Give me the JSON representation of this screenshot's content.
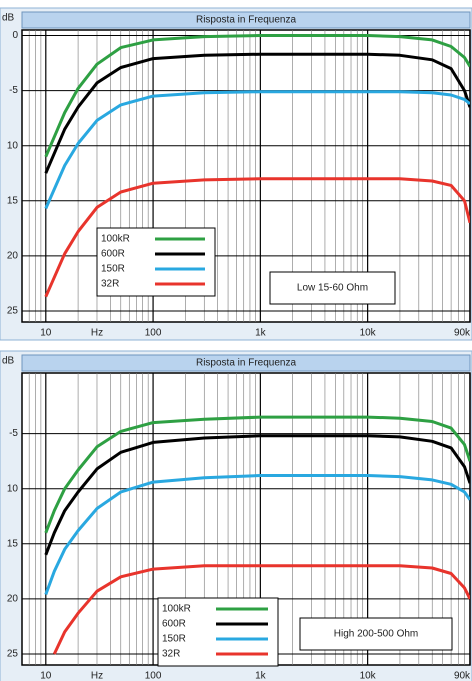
{
  "chart_data": [
    {
      "type": "line",
      "title": "Risposta in Frequenza",
      "y_label": "dB",
      "x_unit_label": "Hz",
      "log_x": true,
      "grid": true,
      "xlim": [
        6,
        90000
      ],
      "xticks": [
        10,
        100,
        {
          "value": 1000,
          "label": "1k"
        },
        {
          "value": 10000,
          "label": "10k"
        },
        {
          "value": 90000,
          "label": "90k"
        }
      ],
      "ylim": [
        -26,
        0.5
      ],
      "yticks": [
        0,
        -5,
        {
          "value": -10,
          "label": "10"
        },
        {
          "value": -15,
          "label": "15"
        },
        {
          "value": -20,
          "label": "20"
        },
        {
          "value": -25,
          "label": "25"
        }
      ],
      "annotation": "Low 15-60 Ohm",
      "x": [
        10,
        15,
        20,
        30,
        50,
        100,
        300,
        1000,
        3000,
        10000,
        20000,
        40000,
        60000,
        80000,
        90000
      ],
      "series": [
        {
          "name": "100kR",
          "color": "#2ea043",
          "values": [
            -11,
            -7,
            -4.8,
            -2.6,
            -1.1,
            -0.4,
            -0.1,
            0,
            0,
            0,
            -0.1,
            -0.4,
            -1,
            -2,
            -2.8
          ]
        },
        {
          "name": "600R",
          "color": "#000000",
          "values": [
            -12.5,
            -8.5,
            -6.5,
            -4.3,
            -2.9,
            -2.1,
            -1.8,
            -1.7,
            -1.7,
            -1.7,
            -1.8,
            -2.2,
            -3,
            -5,
            -6.5
          ]
        },
        {
          "name": "150R",
          "color": "#29a8e0",
          "values": [
            -15.7,
            -11.8,
            -9.8,
            -7.7,
            -6.3,
            -5.5,
            -5.2,
            -5.1,
            -5.1,
            -5.1,
            -5.1,
            -5.2,
            -5.4,
            -5.8,
            -6.2
          ]
        },
        {
          "name": "32R",
          "color": "#e8342c",
          "values": [
            -23.7,
            -19.8,
            -17.8,
            -15.6,
            -14.2,
            -13.4,
            -13.1,
            -13,
            -13,
            -13,
            -13,
            -13.2,
            -13.6,
            -15,
            -17
          ]
        }
      ]
    },
    {
      "type": "line",
      "title": "Risposta in Frequenza",
      "y_label": "dB",
      "x_unit_label": "Hz",
      "log_x": true,
      "grid": true,
      "xlim": [
        6,
        90000
      ],
      "xticks": [
        10,
        100,
        {
          "value": 1000,
          "label": "1k"
        },
        {
          "value": 10000,
          "label": "10k"
        },
        {
          "value": 90000,
          "label": "90k"
        }
      ],
      "ylim": [
        -26,
        0.5
      ],
      "yticks": [
        -5,
        {
          "value": -10,
          "label": "10"
        },
        {
          "value": -15,
          "label": "15"
        },
        {
          "value": -20,
          "label": "20"
        },
        {
          "value": -25,
          "label": "25"
        }
      ],
      "annotation": "High 200-500 Ohm",
      "x": [
        10,
        12,
        15,
        20,
        30,
        50,
        100,
        300,
        1000,
        3000,
        10000,
        20000,
        40000,
        60000,
        80000,
        90000
      ],
      "series": [
        {
          "name": "100kR",
          "color": "#2ea043",
          "values": [
            -14,
            -12,
            -10,
            -8.3,
            -6.2,
            -4.8,
            -4,
            -3.7,
            -3.5,
            -3.5,
            -3.5,
            -3.6,
            -3.9,
            -4.5,
            -6,
            -7.5
          ]
        },
        {
          "name": "600R",
          "color": "#000000",
          "values": [
            -16,
            -14,
            -12,
            -10.3,
            -8.2,
            -6.7,
            -5.8,
            -5.4,
            -5.2,
            -5.2,
            -5.2,
            -5.3,
            -5.7,
            -6.3,
            -8,
            -9.5
          ]
        },
        {
          "name": "150R",
          "color": "#29a8e0",
          "values": [
            -19.6,
            -17.5,
            -15.5,
            -13.8,
            -11.8,
            -10.3,
            -9.4,
            -9,
            -8.8,
            -8.8,
            -8.8,
            -8.9,
            -9.2,
            -9.6,
            -10.3,
            -11
          ]
        },
        {
          "name": "32R",
          "color": "#e8342c",
          "values": [
            null,
            -25,
            -23,
            -21.3,
            -19.3,
            -18,
            -17.3,
            -17,
            -17,
            -17,
            -17,
            -17,
            -17.2,
            -17.7,
            -19,
            -20
          ]
        }
      ]
    }
  ]
}
